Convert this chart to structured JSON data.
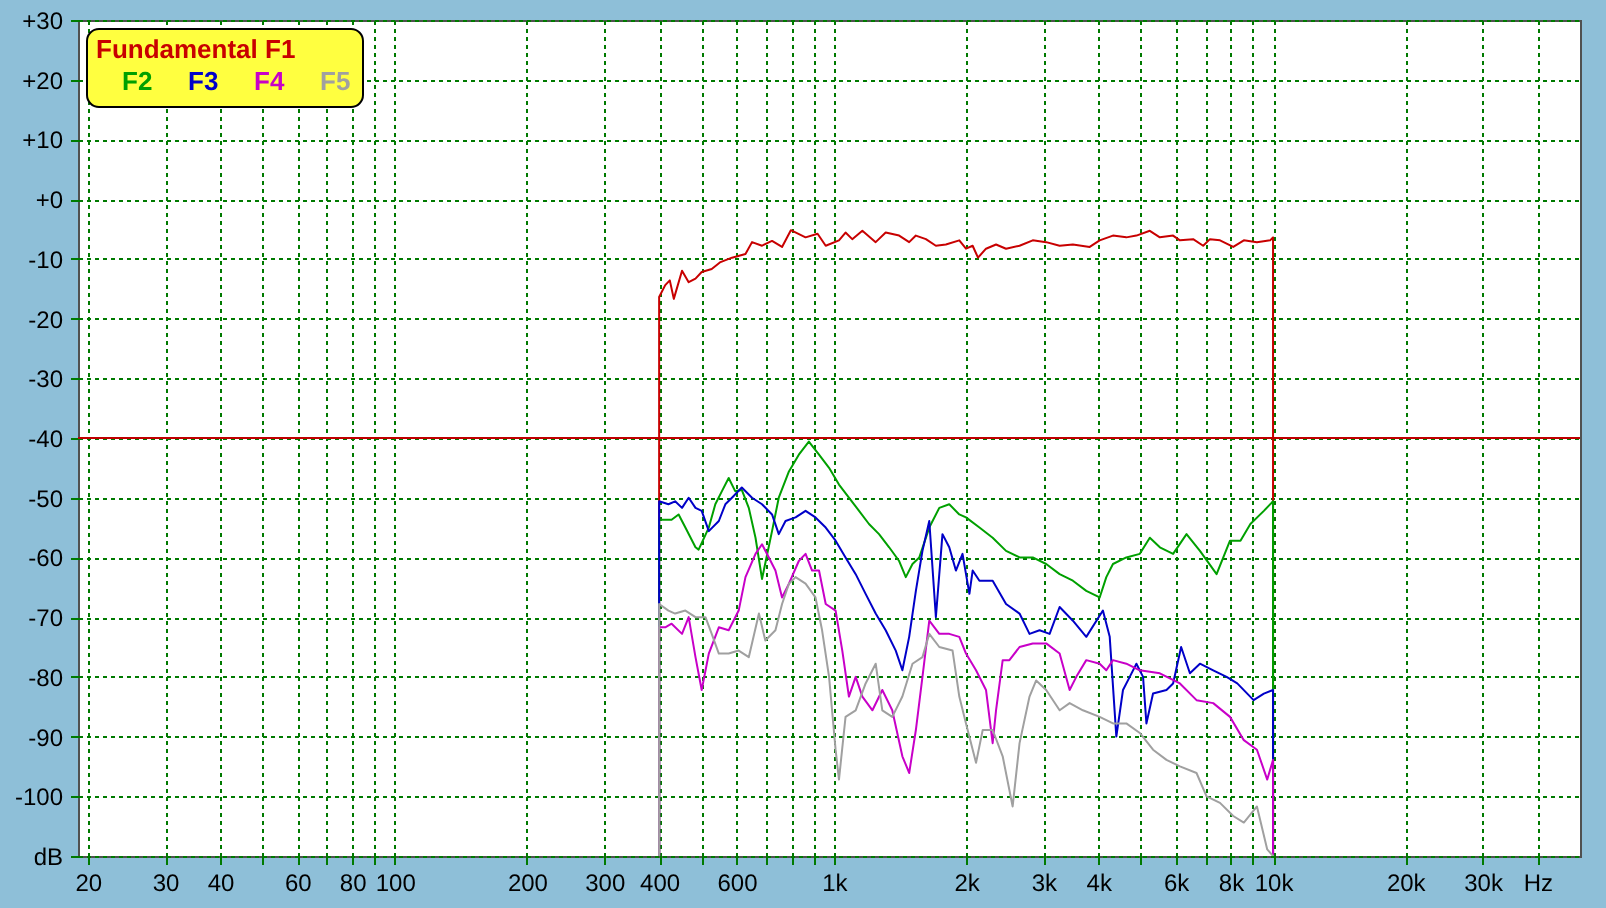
{
  "chart_data": {
    "type": "line",
    "log": "x",
    "grid": true,
    "legend": "top left",
    "xlim": [
      19,
      50000
    ],
    "xticks": [
      20,
      30,
      40,
      {
        "value": 50,
        "label": null
      },
      60,
      {
        "value": 70,
        "label": null
      },
      80,
      {
        "value": 90,
        "label": null
      },
      100,
      200,
      300,
      400,
      {
        "value": 500,
        "label": null
      },
      600,
      {
        "value": 700,
        "label": null
      },
      {
        "value": 800,
        "label": null
      },
      {
        "value": 900,
        "label": null
      },
      {
        "value": 1000,
        "label": "1k"
      },
      {
        "value": 2000,
        "label": "2k"
      },
      {
        "value": 3000,
        "label": "3k"
      },
      {
        "value": 4000,
        "label": "4k"
      },
      {
        "value": 5000,
        "label": null
      },
      {
        "value": 6000,
        "label": "6k"
      },
      {
        "value": 7000,
        "label": null
      },
      {
        "value": 8000,
        "label": "8k"
      },
      {
        "value": 9000,
        "label": null
      },
      {
        "value": 10000,
        "label": "10k"
      },
      {
        "value": 20000,
        "label": "20k"
      },
      {
        "value": 30000,
        "label": "30k"
      },
      {
        "value": 40000,
        "label": "Hz"
      }
    ],
    "ylim": [
      -110,
      30
    ],
    "yticks": [
      {
        "value": 30,
        "label": "+30"
      },
      {
        "value": 20,
        "label": "+20"
      },
      {
        "value": 10,
        "label": "+10"
      },
      {
        "value": 0,
        "label": "+0"
      },
      -10,
      -20,
      -30,
      -40,
      -50,
      -60,
      -70,
      -80,
      -90,
      -100,
      {
        "value": -110,
        "label": "dB"
      }
    ],
    "ref_lines": [
      {
        "axis": "y",
        "value": -40,
        "color": "#c00000"
      }
    ],
    "series": [
      {
        "name": "Fundamental F1",
        "color": "#c80000",
        "x": [
          400,
          400,
          413,
          423,
          432,
          451,
          467,
          484,
          500,
          527,
          550,
          586,
          629,
          651,
          686,
          723,
          762,
          798,
          862,
          918,
          958,
          1027,
          1063,
          1101,
          1161,
          1245,
          1312,
          1408,
          1484,
          1537,
          1620,
          1707,
          1799,
          1930,
          1999,
          2070,
          2129,
          2220,
          2340,
          2466,
          2647,
          2837,
          3044,
          3266,
          3501,
          3824,
          4029,
          4320,
          4634,
          4885,
          5241,
          5524,
          5921,
          6137,
          6577,
          6932,
          7184,
          7572,
          8117,
          8580,
          9190,
          9850,
          10000,
          10000
        ],
        "values": [
          -110,
          -16.4,
          -14.4,
          -13.6,
          -16.7,
          -12,
          -13.9,
          -13.3,
          -12.2,
          -11.7,
          -10.6,
          -9.8,
          -9.2,
          -7.2,
          -7.8,
          -7,
          -8,
          -5.2,
          -6.4,
          -5.8,
          -7.8,
          -6.9,
          -5.6,
          -6.7,
          -5.3,
          -7.2,
          -5.6,
          -6.1,
          -7.2,
          -6.1,
          -6.7,
          -7.8,
          -7.6,
          -6.9,
          -8.3,
          -7.8,
          -9.8,
          -8.3,
          -7.6,
          -8.3,
          -7.8,
          -6.9,
          -7.2,
          -7.8,
          -7.6,
          -8,
          -6.9,
          -6.1,
          -6.4,
          -6.1,
          -5.3,
          -6.4,
          -6.1,
          -6.9,
          -6.7,
          -7.8,
          -6.7,
          -6.9,
          -8,
          -6.9,
          -7.2,
          -6.9,
          -6.4,
          -110
        ]
      },
      {
        "name": "F2",
        "color": "#00a000",
        "x": [
          400,
          400,
          427,
          443,
          459,
          484,
          492,
          519,
          537,
          556,
          576,
          596,
          617,
          640,
          663,
          686,
          723,
          749,
          790,
          832,
          877,
          925,
          975,
          1027,
          1082,
          1141,
          1202,
          1267,
          1336,
          1408,
          1458,
          1510,
          1565,
          1649,
          1738,
          1831,
          1930,
          1999,
          2145,
          2299,
          2466,
          2647,
          2837,
          3044,
          3266,
          3501,
          3756,
          4029,
          4172,
          4320,
          4634,
          4973,
          5241,
          5524,
          5921,
          6353,
          6816,
          7438,
          7980,
          8430,
          8880,
          9530,
          10000,
          10000
        ],
        "values": [
          -110,
          -53.7,
          -53.7,
          -52.8,
          -55,
          -58.3,
          -58.7,
          -55,
          -51.1,
          -48.9,
          -46.7,
          -48.9,
          -48.7,
          -51.7,
          -56.7,
          -63.6,
          -55.6,
          -50,
          -45.6,
          -42.8,
          -40.6,
          -42.8,
          -45,
          -47.8,
          -50,
          -52.2,
          -54.4,
          -56.1,
          -58.3,
          -60.6,
          -63.3,
          -61.1,
          -60,
          -55,
          -51.7,
          -51.1,
          -52.8,
          -53.3,
          -55,
          -56.7,
          -58.9,
          -60,
          -60,
          -61.1,
          -62.8,
          -63.9,
          -65.6,
          -66.7,
          -63.3,
          -61.1,
          -60,
          -59.4,
          -56.7,
          -58.3,
          -59.4,
          -56.1,
          -58.9,
          -62.8,
          -57.2,
          -57.2,
          -54.4,
          -52.2,
          -50.6,
          -110
        ]
      },
      {
        "name": "F3",
        "color": "#0000c8",
        "x": [
          400,
          400,
          420,
          435,
          451,
          467,
          484,
          500,
          519,
          547,
          566,
          586,
          617,
          651,
          686,
          723,
          749,
          776,
          818,
          862,
          908,
          958,
          1009,
          1063,
          1121,
          1181,
          1245,
          1312,
          1383,
          1432,
          1484,
          1537,
          1591,
          1649,
          1707,
          1767,
          1831,
          1896,
          1963,
          2035,
          2070,
          2145,
          2299,
          2466,
          2647,
          2789,
          2940,
          3099,
          3266,
          3501,
          3756,
          4098,
          4247,
          4397,
          4553,
          4717,
          4885,
          5058,
          5148,
          5330,
          5719,
          5921,
          6176,
          6467,
          6816,
          7307,
          7839,
          8290,
          9030,
          9530,
          10000,
          10000
        ],
        "values": [
          -110,
          -50.6,
          -51.1,
          -50.6,
          -51.7,
          -50,
          -51.7,
          -52.2,
          -55.6,
          -53.9,
          -51.1,
          -50,
          -48.3,
          -50,
          -51.1,
          -52.8,
          -56.1,
          -53.9,
          -53.3,
          -52.2,
          -53.3,
          -55,
          -57.2,
          -60,
          -62.8,
          -66.1,
          -69.4,
          -72.2,
          -75.6,
          -78.9,
          -73.3,
          -65.6,
          -58.9,
          -53.9,
          -70,
          -56.1,
          -58.3,
          -62.2,
          -59.4,
          -66.1,
          -62.2,
          -63.9,
          -63.9,
          -67.8,
          -69.4,
          -72.8,
          -72.2,
          -72.8,
          -68.3,
          -70.6,
          -73.3,
          -68.9,
          -73.3,
          -90,
          -82.2,
          -80,
          -77.8,
          -80,
          -87.8,
          -82.8,
          -82.2,
          -81.1,
          -75,
          -79.4,
          -77.8,
          -78.9,
          -80,
          -81.1,
          -83.9,
          -82.8,
          -82.2,
          -110
        ]
      },
      {
        "name": "F4",
        "color": "#c800c8",
        "x": [
          400,
          400,
          413,
          427,
          451,
          467,
          484,
          500,
          519,
          547,
          576,
          607,
          629,
          663,
          686,
          711,
          736,
          762,
          790,
          832,
          862,
          892,
          925,
          958,
          1009,
          1045,
          1082,
          1121,
          1161,
          1224,
          1289,
          1358,
          1432,
          1484,
          1537,
          1591,
          1649,
          1738,
          1831,
          1930,
          1999,
          2107,
          2220,
          2299,
          2340,
          2423,
          2510,
          2647,
          2837,
          3044,
          3266,
          3442,
          3564,
          3756,
          4029,
          4172,
          4320,
          4634,
          4973,
          5524,
          6137,
          6695,
          7307,
          7980,
          8580,
          9190,
          9700,
          10000,
          10000
        ],
        "values": [
          -110,
          -71.7,
          -71.7,
          -71.1,
          -72.8,
          -70,
          -76.7,
          -82.2,
          -76.1,
          -71.7,
          -72.2,
          -68.9,
          -63.3,
          -59.4,
          -57.8,
          -60,
          -62.2,
          -66.7,
          -64.4,
          -60.6,
          -59.4,
          -62.2,
          -62.2,
          -67.8,
          -68.9,
          -75.6,
          -83.3,
          -80,
          -83.3,
          -85.6,
          -82.2,
          -85.6,
          -93.3,
          -96.1,
          -88.9,
          -80,
          -70.6,
          -72.8,
          -72.8,
          -73.3,
          -76.1,
          -78.9,
          -82.2,
          -91.1,
          -85.6,
          -77.2,
          -77.2,
          -75,
          -74.4,
          -74.4,
          -76.1,
          -82.2,
          -80,
          -77.2,
          -77.8,
          -78.9,
          -77.2,
          -77.8,
          -78.9,
          -79.4,
          -81.1,
          -83.9,
          -84.4,
          -86.7,
          -90.6,
          -92.2,
          -97.2,
          -93.9,
          -110
        ]
      },
      {
        "name": "F5",
        "color": "#a0a0a0",
        "x": [
          400,
          400,
          420,
          435,
          459,
          484,
          510,
          527,
          547,
          576,
          607,
          640,
          675,
          698,
          736,
          762,
          790,
          818,
          862,
          908,
          940,
          975,
          1009,
          1027,
          1063,
          1121,
          1181,
          1245,
          1289,
          1358,
          1432,
          1510,
          1591,
          1649,
          1738,
          1863,
          1930,
          1999,
          2107,
          2182,
          2299,
          2423,
          2553,
          2647,
          2789,
          2888,
          3044,
          3266,
          3442,
          3690,
          4029,
          4320,
          4634,
          4973,
          5330,
          5719,
          6137,
          6695,
          7057,
          7572,
          8117,
          8580,
          9190,
          9700,
          10000
        ],
        "values": [
          -110,
          -67.8,
          -68.9,
          -69.4,
          -68.9,
          -70,
          -70,
          -72.8,
          -76.1,
          -76.1,
          -75.6,
          -76.7,
          -69.4,
          -73.9,
          -72.2,
          -67.8,
          -64.4,
          -63.3,
          -64.4,
          -66.7,
          -72.2,
          -80,
          -92.2,
          -97.2,
          -86.7,
          -85.6,
          -81.1,
          -77.8,
          -85.6,
          -86.7,
          -83.3,
          -77.8,
          -76.7,
          -72.8,
          -75,
          -75.6,
          -83.3,
          -87.8,
          -94.4,
          -88.9,
          -88.9,
          -93.3,
          -101.7,
          -91.1,
          -83.3,
          -80.6,
          -82.2,
          -85.6,
          -84.4,
          -85.6,
          -86.7,
          -87.8,
          -87.8,
          -89.4,
          -92.2,
          -93.9,
          -95,
          -96.1,
          -100,
          -101.1,
          -103.3,
          -104.4,
          -101.7,
          -108.9,
          -110
        ]
      }
    ]
  }
}
